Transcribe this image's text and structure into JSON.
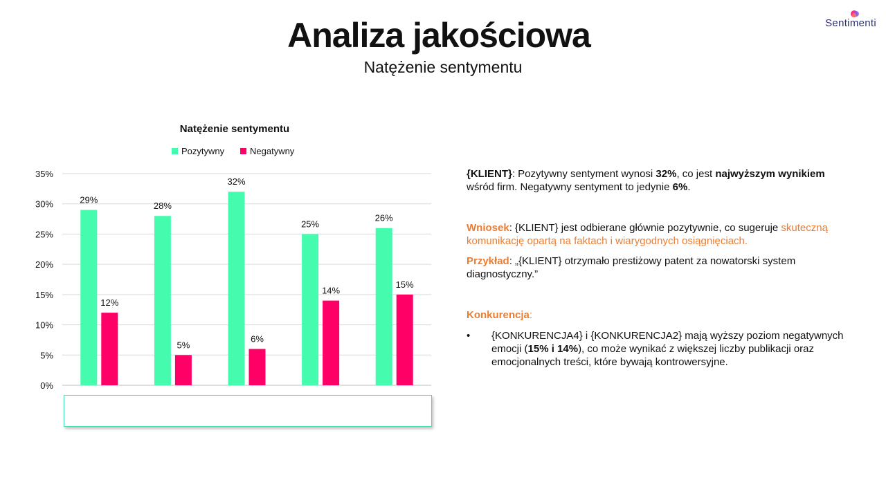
{
  "header": {
    "title": "Analiza jakościowa",
    "subtitle": "Natężenie sentymentu"
  },
  "logo": {
    "text": "Sentimenti"
  },
  "colors": {
    "positive": "#45fcae",
    "negative": "#ff0066",
    "accent": "#ec7c30",
    "brand": "#2a2f6e"
  },
  "chart_data": {
    "type": "bar",
    "title": "Natężenie sentymentu",
    "categories": [
      "",
      "",
      "",
      "",
      ""
    ],
    "series": [
      {
        "name": "Pozytywny",
        "values": [
          29,
          28,
          32,
          25,
          26
        ],
        "labels": [
          "29%",
          "28%",
          "32%",
          "25%",
          "26%"
        ]
      },
      {
        "name": "Negatywny",
        "values": [
          12,
          5,
          6,
          14,
          15
        ],
        "labels": [
          "12%",
          "5%",
          "6%",
          "14%",
          "15%"
        ]
      }
    ],
    "ylim": [
      0,
      35
    ],
    "yticks": [
      "0%",
      "5%",
      "10%",
      "15%",
      "20%",
      "25%",
      "30%",
      "35%"
    ],
    "legend": "top",
    "grid": true
  },
  "panel": {
    "p1": {
      "klient": "{KLIENT}",
      "t1": ": Pozytywny sentyment wynosi ",
      "v1": "32%",
      "t2": ", co jest ",
      "b1": "najwyższym wynikiem",
      "t3": " wśród firm. Negatywny sentyment to jedynie ",
      "v2": "6%",
      "t4": "."
    },
    "p2": {
      "label": "Wniosek",
      "t1": ": {KLIENT} jest odbierane głównie pozytywnie, co sugeruje ",
      "highlight": "skuteczną komunikację opartą na faktach i wiarygodnych osiągnięciach."
    },
    "p3": {
      "label": "Przykład",
      "t1": ": „{KLIENT} otrzymało prestiżowy patent za nowatorski system diagnostyczny.”"
    },
    "p4": {
      "label": "Konkurencja",
      "colon": ":"
    },
    "bullet": {
      "dot": "•",
      "t1": "{KONKURENCJA4} i {KONKURENCJA2} mają wyższy poziom negatywnych emocji (",
      "b1": "15% i 14%",
      "t2": "), co może wynikać z większej liczby publikacji oraz emocjonalnych treści, które bywają kontrowersyjne."
    }
  }
}
